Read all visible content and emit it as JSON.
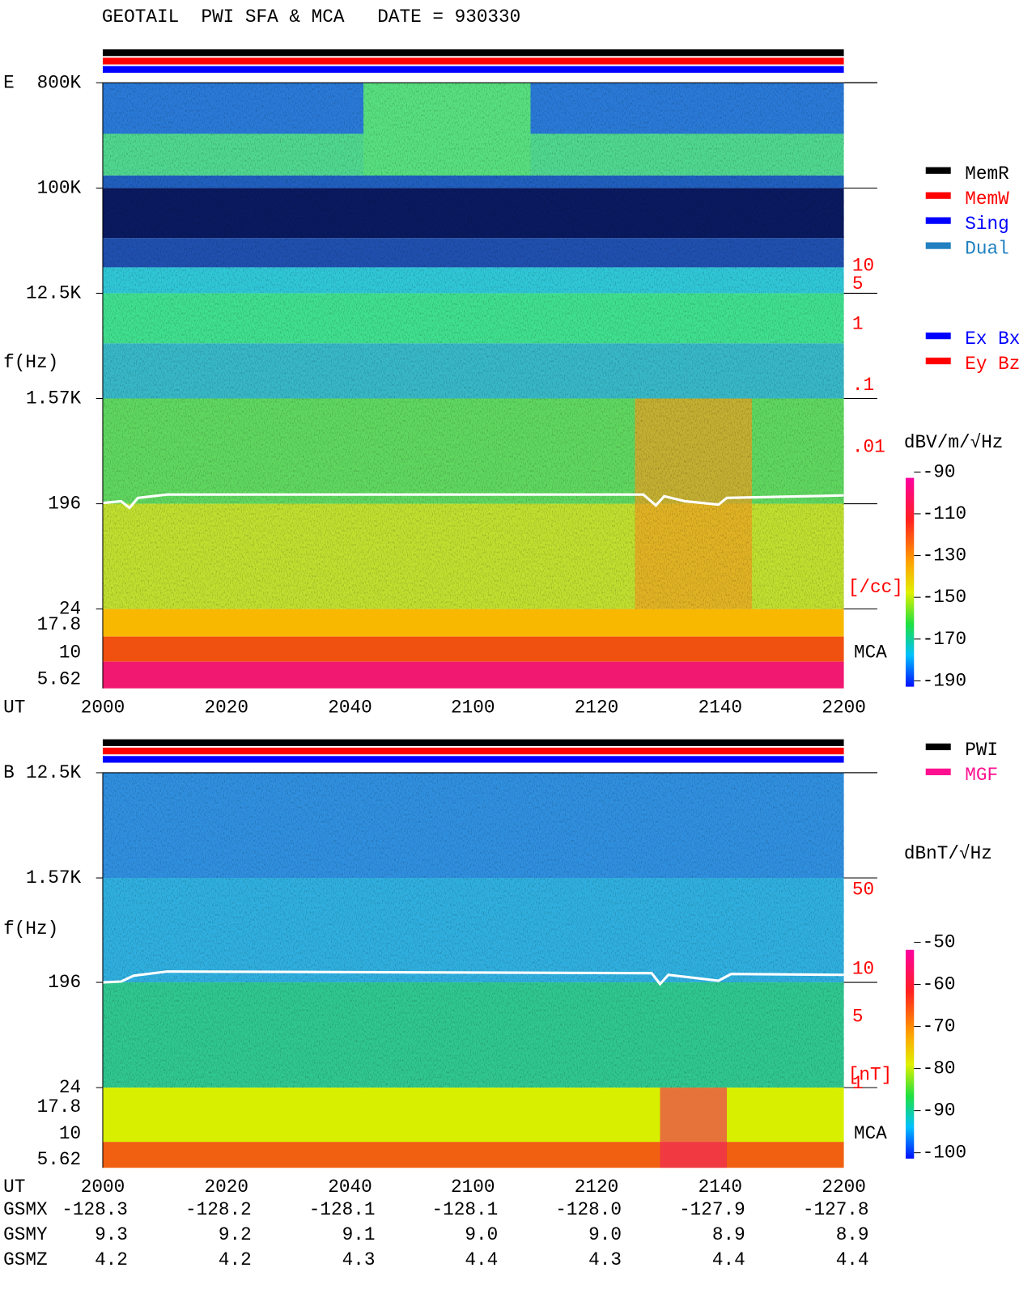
{
  "header": {
    "title": "GEOTAIL  PWI SFA & MCA   DATE = 930330"
  },
  "panels": [
    {
      "label": "E",
      "ylabel": "f(Hz)",
      "xlabel": "UT",
      "freq_ticks": [
        "800K",
        "100K",
        "12.5K",
        "1.57K",
        "196",
        "24",
        "17.8",
        "10",
        "5.62"
      ],
      "time_ticks": [
        "2000",
        "2020",
        "2040",
        "2100",
        "2120",
        "2140",
        "2200"
      ],
      "right_labels": [
        "10",
        "5",
        "1",
        ".1",
        ".01",
        "[/cc]"
      ],
      "mca_label": "MCA",
      "legend": [
        {
          "name": "MemR",
          "color": "#000000"
        },
        {
          "name": "MemW",
          "color": "#ff0000"
        },
        {
          "name": "Sing",
          "color": "#0000ff"
        },
        {
          "name": "Dual",
          "color": "#2080c0"
        }
      ],
      "legend2": [
        {
          "name": "Ex Bx",
          "color": "#0000ff"
        },
        {
          "name": "Ey Bz",
          "color": "#ff0000"
        }
      ],
      "colorbar": {
        "unit": "dBV/m/√Hz",
        "lim": [
          -90,
          -190
        ],
        "ticks": [
          -90,
          -110,
          -130,
          -150,
          -170,
          -190
        ]
      }
    },
    {
      "label": "B",
      "ylabel": "f(Hz)",
      "xlabel": "UT",
      "freq_ticks": [
        "12.5K",
        "1.57K",
        "196",
        "24",
        "17.8",
        "10",
        "5.62"
      ],
      "time_ticks": [
        "2000",
        "2020",
        "2040",
        "2100",
        "2120",
        "2140",
        "2200"
      ],
      "right_labels": [
        "50",
        "10",
        "5",
        "1",
        "[nT]"
      ],
      "mca_label": "MCA",
      "legend": [
        {
          "name": "PWI",
          "color": "#000000"
        },
        {
          "name": "MGF",
          "color": "#ff1090"
        }
      ],
      "colorbar": {
        "unit": "dBnT/√Hz",
        "lim": [
          -50,
          -100
        ],
        "ticks": [
          -50,
          -60,
          -70,
          -80,
          -90,
          -100
        ]
      }
    }
  ],
  "orbit": {
    "rows": [
      {
        "name": "GSMX",
        "values": [
          "-128.3",
          "-128.2",
          "-128.1",
          "-128.1",
          "-128.0",
          "-127.9",
          "-127.8"
        ]
      },
      {
        "name": "GSMY",
        "values": [
          "9.3",
          "9.2",
          "9.1",
          "9.0",
          "9.0",
          "8.9",
          "8.9"
        ]
      },
      {
        "name": "GSMZ",
        "values": [
          "4.2",
          "4.2",
          "4.3",
          "4.4",
          "4.3",
          "4.4",
          "4.4"
        ]
      }
    ]
  }
}
